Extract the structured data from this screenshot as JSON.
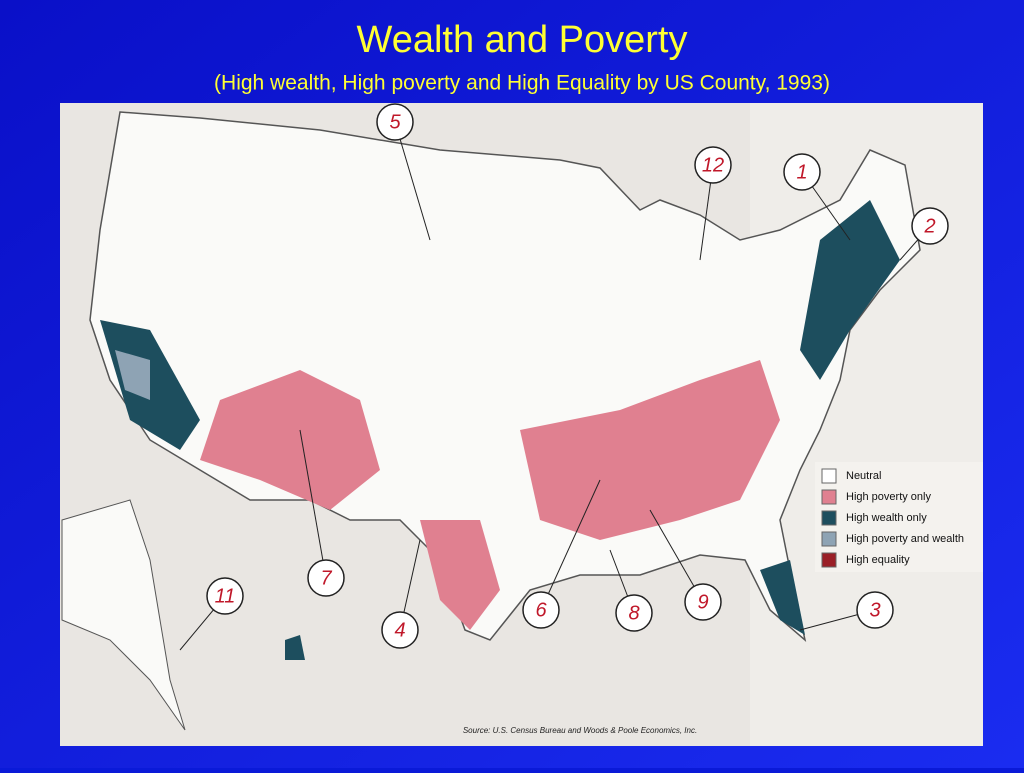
{
  "title": "Wealth and Poverty",
  "subtitle": "(High wealth, High poverty and High Equality by US County, 1993)",
  "legend": [
    {
      "label": "Neutral",
      "color": "#ffffff"
    },
    {
      "label": "High poverty only",
      "color": "#e08090"
    },
    {
      "label": "High wealth only",
      "color": "#1d4e5e"
    },
    {
      "label": "High poverty and wealth",
      "color": "#8ea3b4"
    },
    {
      "label": "High equality",
      "color": "#9a1f27"
    }
  ],
  "callouts": [
    "5",
    "12",
    "1",
    "2",
    "3",
    "9",
    "8",
    "6",
    "4",
    "7",
    "11"
  ],
  "source": "Source: U.S. Census Bureau and Woods & Poole Economics, Inc."
}
